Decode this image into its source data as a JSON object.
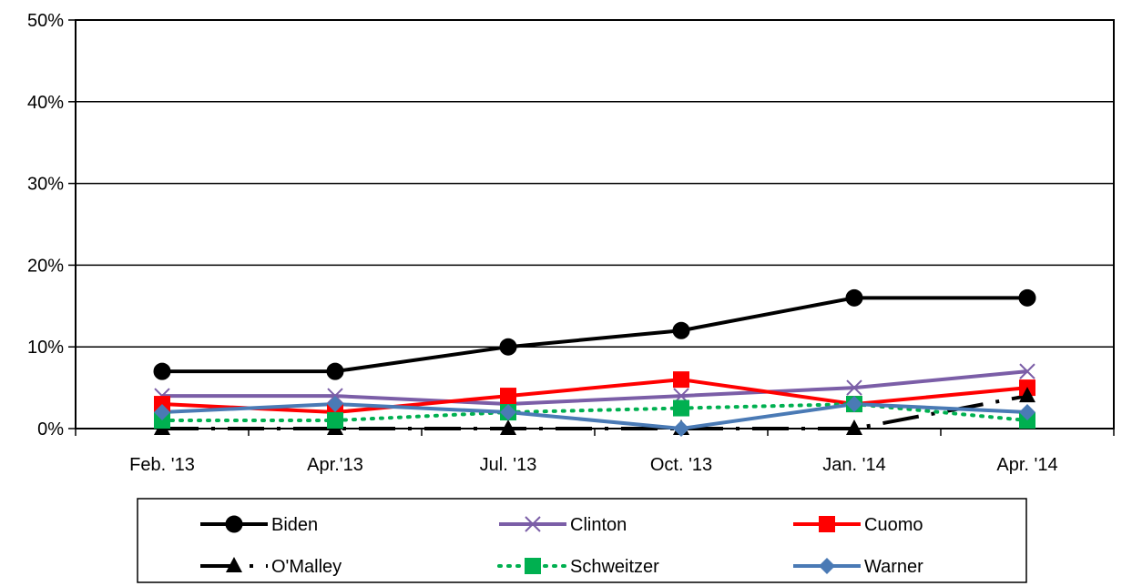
{
  "chart_data": {
    "type": "line",
    "categories": [
      "Feb. '13",
      "Apr.'13",
      "Jul. '13",
      "Oct. '13",
      "Jan. '14",
      "Apr. '14"
    ],
    "ylim": [
      0,
      50
    ],
    "yticks": [
      0,
      10,
      20,
      30,
      40,
      50
    ],
    "ytick_labels": [
      "0%",
      "10%",
      "20%",
      "30%",
      "40%",
      "50%"
    ],
    "grid": true,
    "legend_position": "bottom",
    "series": [
      {
        "name": "Biden",
        "values": [
          7,
          7,
          10,
          12,
          16,
          16
        ],
        "color": "#000000",
        "marker": "circle",
        "dash": "solid"
      },
      {
        "name": "Clinton",
        "values": [
          4,
          4,
          3,
          4,
          5,
          7
        ],
        "color": "#7b5ea7",
        "marker": "x",
        "dash": "solid"
      },
      {
        "name": "Cuomo",
        "values": [
          3,
          2,
          4,
          6,
          3,
          5
        ],
        "color": "#ff0000",
        "marker": "square",
        "dash": "solid"
      },
      {
        "name": "O'Malley",
        "values": [
          0,
          0,
          0,
          0,
          0,
          4
        ],
        "color": "#000000",
        "marker": "triangle",
        "dash": "longdashdot"
      },
      {
        "name": "Schweitzer",
        "values": [
          1,
          1,
          2,
          2.5,
          3,
          1
        ],
        "color": "#00b050",
        "marker": "square",
        "dash": "dotted"
      },
      {
        "name": "Warner",
        "values": [
          2,
          3,
          2,
          0,
          3,
          2
        ],
        "color": "#4a7ab5",
        "marker": "diamond",
        "dash": "solid"
      }
    ]
  }
}
